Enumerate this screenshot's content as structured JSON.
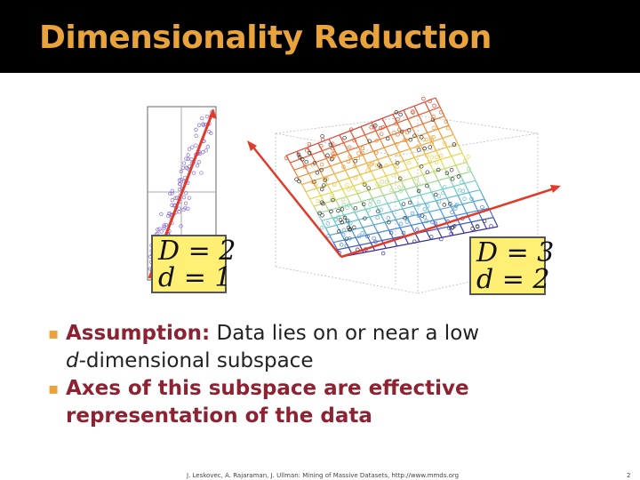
{
  "slide": {
    "title": "Dimensionality Reduction",
    "colors": {
      "title_bar": "#000000",
      "title_text": "#e8a33c",
      "accent": "#8c2232",
      "bullet_mark": "#e8a33c",
      "box": "#ffef75",
      "arrow": "#e03a2a"
    }
  },
  "figure_left": {
    "label_D": "D = 2",
    "label_d": "d = 1"
  },
  "figure_right": {
    "label_D": "D = 3",
    "label_d": "d = 2"
  },
  "bullets": [
    {
      "mark": "▪",
      "head": "Assumption:",
      "line1": " Data lies on or near a low ",
      "italic": "d",
      "line2": "-dimensional subspace"
    },
    {
      "mark": "▪",
      "line1": "Axes of this subspace are effective",
      "line2": "representation of the data"
    }
  ],
  "footer": {
    "citation": "J. Leskovec, A. Rajaraman, J. Ullman: Mining of Massive Datasets, http://www.mmds.org",
    "page_number": "2"
  }
}
